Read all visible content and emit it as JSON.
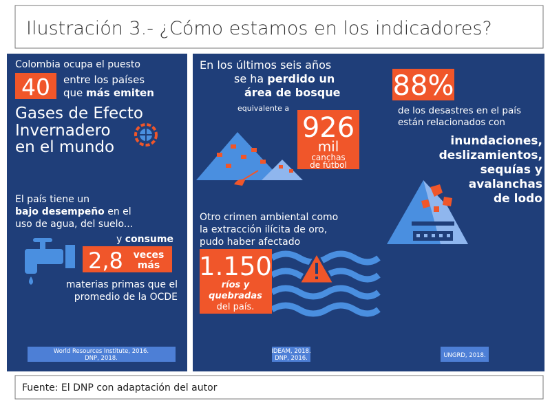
{
  "header": {
    "title": "Ilustración 3.- ¿Cómo estamos en los indicadores?"
  },
  "left": {
    "intro": "Colombia ocupa el puesto",
    "rank": "40",
    "rank_line1": "entre los países",
    "rank_line2_a": "que ",
    "rank_line2_b": "más emiten",
    "gases_1": "Gases de Efecto",
    "gases_2": "Invernadero",
    "gases_3": "en el mundo",
    "water_1": "El país tiene un",
    "water_2_a": "bajo desempeño",
    "water_2_b": " en el",
    "water_3": "uso de agua, del suelo...",
    "consume_a": "y ",
    "consume_b": "consume",
    "factor": "2,8",
    "factor_unit_1": "veces",
    "factor_unit_2": "más",
    "materials_1": "materias primas que el",
    "materials_2": "promedio de la OCDE",
    "source_1": "World Resources Institute, 2016.",
    "source_2": "DNP, 2018."
  },
  "middle": {
    "forest_1": "En los últimos seis años",
    "forest_2_a": "se ha ",
    "forest_2_b": "perdido un",
    "forest_3": "área de bosque",
    "forest_4": "equivalente a",
    "fields": "926",
    "fields_unit": "mil",
    "fields_text_1": "canchas",
    "fields_text_2": "de fútbol",
    "gold_1": "Otro crimen ambiental como",
    "gold_2": "la extracción ilícita de oro,",
    "gold_3": "pudo haber afectado",
    "rivers": "1.150",
    "rivers_text_1": "ríos y",
    "rivers_text_2": "quebradas",
    "rivers_text_3": "del país.",
    "source_1": "IDEAM, 2018.",
    "source_2": "DNP, 2016."
  },
  "right": {
    "share": "88%",
    "disasters_1": "de los desastres en el país",
    "disasters_2": "están relacionados con",
    "types": [
      "inundaciones,",
      "deslizamientos,",
      "sequías y",
      "avalanchas",
      "de lodo"
    ],
    "source": "UNGRD, 2018."
  },
  "footer": {
    "source": "Fuente: El DNP con adaptación del autor"
  }
}
